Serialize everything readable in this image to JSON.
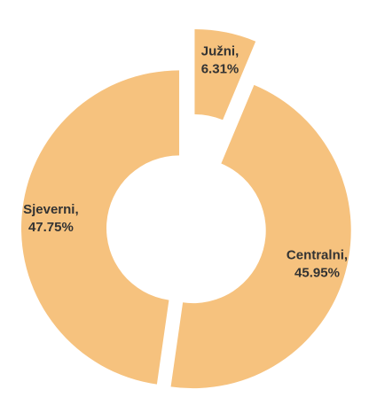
{
  "chart_data": {
    "type": "donut",
    "categories": [
      "Južni,",
      "Centralni,",
      "Sjeverni,"
    ],
    "values": [
      6.31,
      45.95,
      47.75
    ],
    "value_labels": [
      "6.31%",
      "45.95%",
      "47.75%"
    ],
    "color": "#f6c27e"
  }
}
